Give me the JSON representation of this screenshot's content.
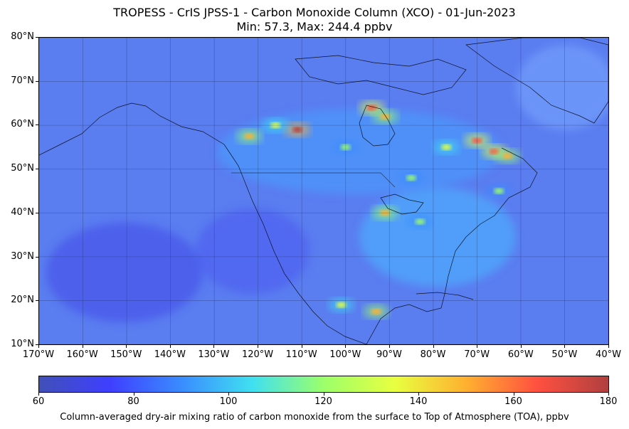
{
  "title": "TROPESS - CrIS JPSS-1 - Carbon Monoxide Column (XCO) - 01-Jun-2023",
  "subtitle": "Min: 57.3, Max: 244.4 ppbv",
  "map": {
    "lon_range": [
      -170,
      -40
    ],
    "lat_range": [
      10,
      80
    ],
    "lat_ticks": [
      "80°N",
      "70°N",
      "60°N",
      "50°N",
      "40°N",
      "30°N",
      "20°N",
      "10°N"
    ],
    "lon_ticks": [
      "170°W",
      "160°W",
      "150°W",
      "140°W",
      "130°W",
      "120°W",
      "110°W",
      "100°W",
      "90°W",
      "80°W",
      "70°W",
      "60°W",
      "50°W",
      "40°W"
    ],
    "background_color": "#5a7df0",
    "hotspots": [
      {
        "lon": -111,
        "lat": 59,
        "value": 180
      },
      {
        "lon": -122,
        "lat": 57.5,
        "value": 150
      },
      {
        "lon": -116,
        "lat": 60,
        "value": 140
      },
      {
        "lon": -94,
        "lat": 64,
        "value": 165
      },
      {
        "lon": -91,
        "lat": 62,
        "value": 150
      },
      {
        "lon": -70,
        "lat": 56.5,
        "value": 160
      },
      {
        "lon": -66,
        "lat": 54,
        "value": 165
      },
      {
        "lon": -77,
        "lat": 55,
        "value": 140
      },
      {
        "lon": -63,
        "lat": 53,
        "value": 150
      },
      {
        "lon": -91,
        "lat": 40,
        "value": 150
      },
      {
        "lon": -83,
        "lat": 38,
        "value": 125
      },
      {
        "lon": -93,
        "lat": 17.5,
        "value": 145
      },
      {
        "lon": -101,
        "lat": 19,
        "value": 130
      },
      {
        "lon": -65,
        "lat": 45,
        "value": 125
      },
      {
        "lon": -85,
        "lat": 48,
        "value": 120
      },
      {
        "lon": -100,
        "lat": 55,
        "value": 125
      }
    ]
  },
  "colorbar": {
    "min": 60,
    "max": 180,
    "ticks": [
      "60",
      "80",
      "100",
      "120",
      "140",
      "160",
      "180"
    ],
    "colors": [
      "#4050b8",
      "#3f3fff",
      "#3a8cff",
      "#40e0f0",
      "#9cff6a",
      "#e8ff40",
      "#ffb030",
      "#ff5040",
      "#b04040"
    ],
    "label": "Column-averaged dry-air mixing ratio of carbon monoxide from the surface to Top of Atmosphere (TOA), ppbv"
  }
}
